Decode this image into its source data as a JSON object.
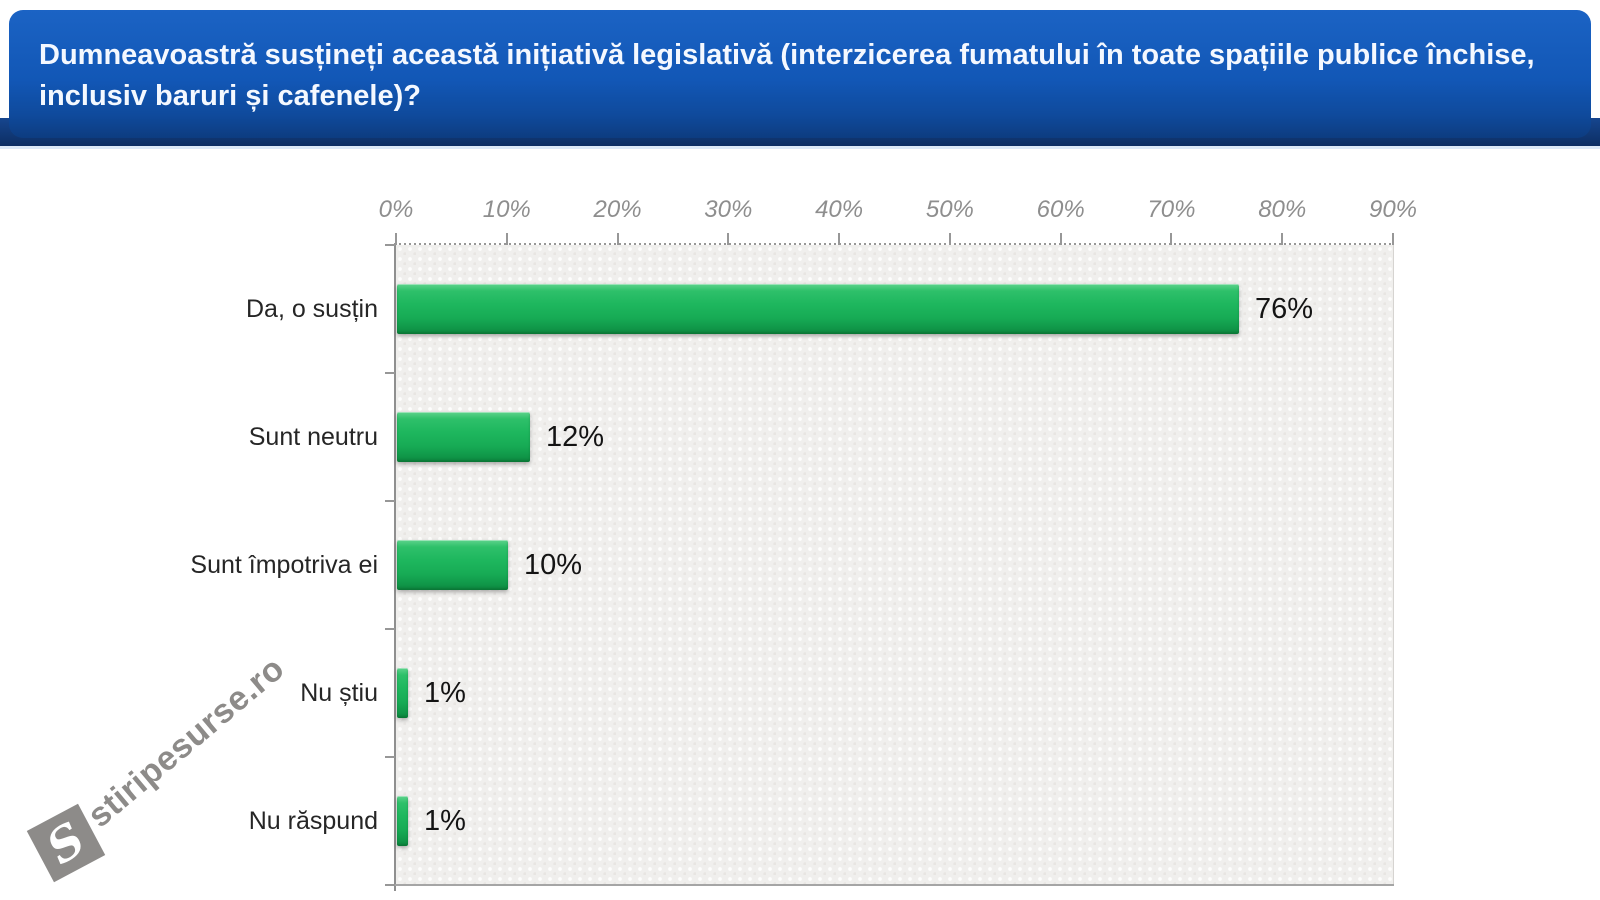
{
  "header": {
    "question": "Dumneavoastră susțineți această inițiativă legislativă (interzicerea fumatului în toate spațiile publice închise, inclusiv baruri și cafenele)?"
  },
  "watermark": {
    "logo_letter": "S",
    "text": "stiripesurse.ro"
  },
  "colors": {
    "header_blue": "#1257b6",
    "header_band_dark": "#0d2e63",
    "bar_green": "#1eb75e",
    "plot_background": "#f0efed",
    "axis_gray": "#979797",
    "tick_label_gray": "#8e8e8e",
    "category_label_color": "#262626",
    "value_label_color": "#141414"
  },
  "chart_data": {
    "type": "bar",
    "orientation": "horizontal",
    "title": "",
    "categories": [
      "Da, o susțin",
      "Sunt neutru",
      "Sunt împotriva ei",
      "Nu știu",
      "Nu răspund"
    ],
    "values": [
      76,
      12,
      10,
      1,
      1
    ],
    "value_labels": [
      "76%",
      "12%",
      "10%",
      "1%",
      "1%"
    ],
    "x_tick_labels": [
      "0%",
      "10%",
      "20%",
      "30%",
      "40%",
      "50%",
      "60%",
      "70%",
      "80%",
      "90%"
    ],
    "xlim": [
      0,
      90
    ],
    "grid": false,
    "legend": false
  }
}
